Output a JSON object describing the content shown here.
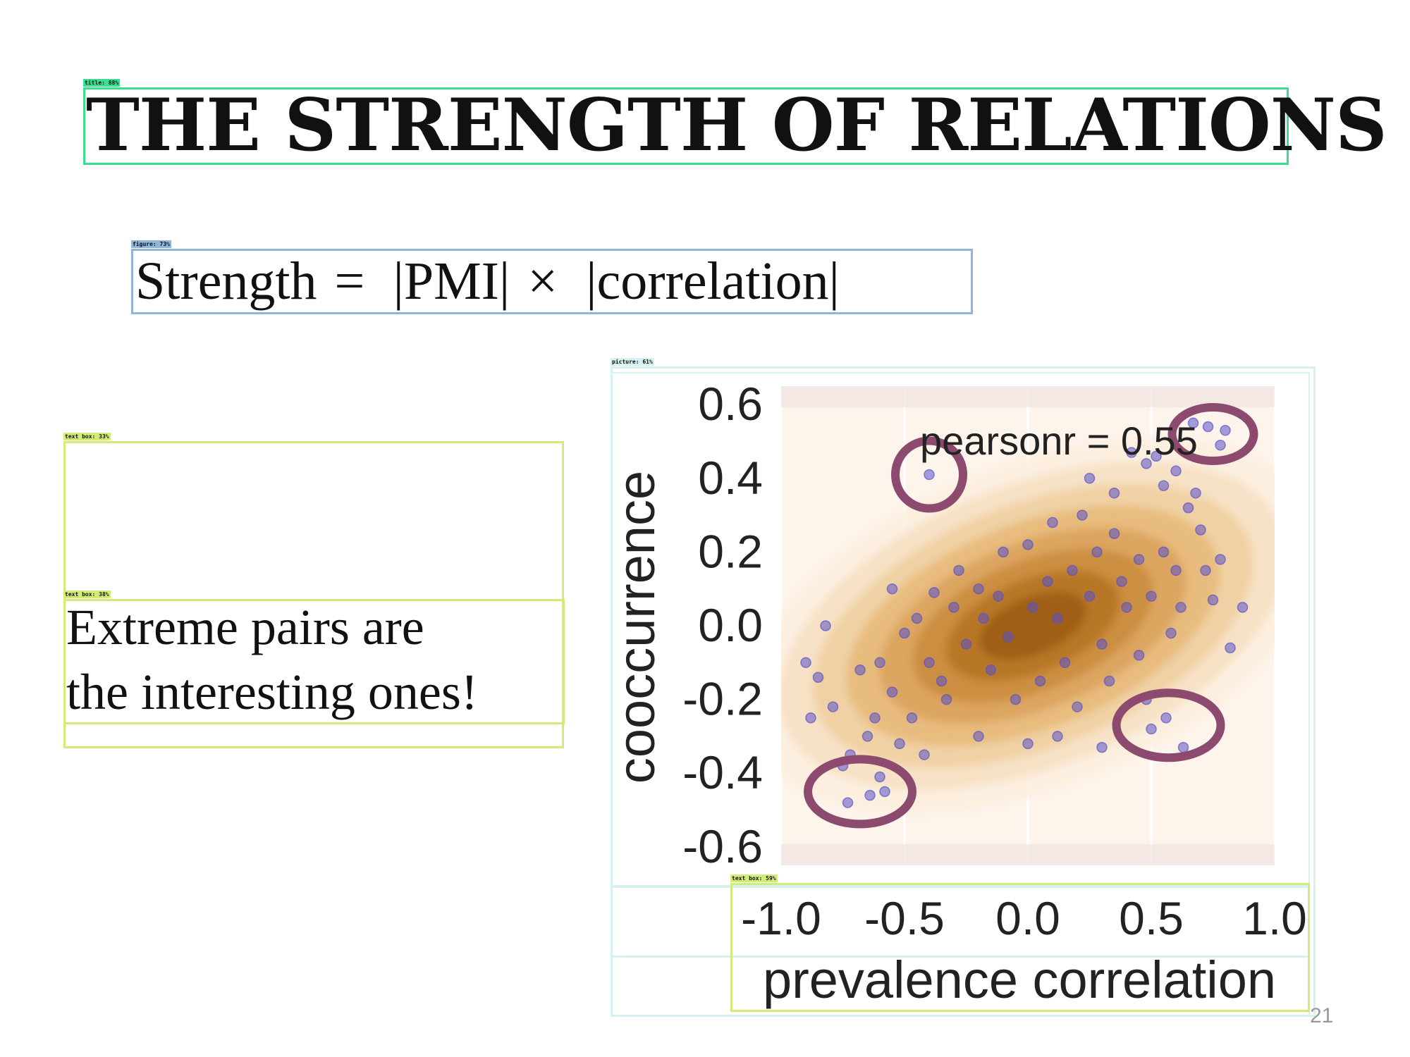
{
  "slide": {
    "title": "THE STRENGTH OF RELATIONS",
    "formula": "Strength =  |PMI| ×  |correlation|",
    "callout_line1": "Extreme pairs are",
    "callout_line2": "the interesting ones!",
    "page_number": "21"
  },
  "detections": {
    "title_label": "title: 88%",
    "figure_label": "figure: 73%",
    "picture_label": "picture: 61%",
    "textbox1_label": "text box: 33%",
    "textbox2_label": "text box: 38%",
    "textbox3_label": "text box: 59%"
  },
  "colors": {
    "title_box": "#36e08f",
    "figure_box": "#8fb6d8",
    "picture_box": "#d6f1f1",
    "textbox_box": "#d2ec78",
    "points": "#5a52c8",
    "circles": "#8c4a6e",
    "density_low": "#f9e6cf",
    "density_high": "#9a5a10",
    "plot_bg": "#fdf4ec"
  },
  "chart_data": {
    "type": "scatter",
    "xlabel": "prevalence correlation",
    "ylabel": "cooccurrence",
    "xlim": [
      -1.0,
      1.0
    ],
    "ylim": [
      -0.65,
      0.65
    ],
    "xticks": [
      "-1.0",
      "-0.5",
      "0.0",
      "0.5",
      "1.0"
    ],
    "yticks": [
      "0.6",
      "0.4",
      "0.2",
      "0.0",
      "-0.2",
      "-0.4",
      "-0.6"
    ],
    "annotation": "pearsonr = 0.55",
    "grid": true,
    "density_overlay": true,
    "highlighted_regions": [
      {
        "name": "upper-left outlier",
        "x": -0.4,
        "y": 0.41
      },
      {
        "name": "upper-right extreme",
        "x": 0.75,
        "y": 0.52
      },
      {
        "name": "lower-right outlier",
        "x": 0.57,
        "y": -0.27
      },
      {
        "name": "lower-left extreme",
        "x": -0.68,
        "y": -0.45
      }
    ],
    "series": [
      {
        "values": [
          [
            -0.73,
            -0.48
          ],
          [
            -0.64,
            -0.46
          ],
          [
            -0.58,
            -0.45
          ],
          [
            -0.75,
            -0.38
          ],
          [
            -0.6,
            -0.41
          ],
          [
            -0.4,
            0.41
          ],
          [
            0.67,
            0.55
          ],
          [
            0.73,
            0.54
          ],
          [
            0.8,
            0.53
          ],
          [
            0.78,
            0.49
          ],
          [
            0.5,
            -0.28
          ],
          [
            0.56,
            -0.25
          ],
          [
            0.63,
            -0.33
          ],
          [
            0.42,
            0.47
          ],
          [
            0.48,
            0.44
          ],
          [
            0.52,
            0.46
          ],
          [
            0.35,
            0.36
          ],
          [
            0.7,
            0.26
          ],
          [
            0.75,
            0.07
          ],
          [
            0.87,
            0.05
          ],
          [
            0.72,
            0.15
          ],
          [
            0.62,
            0.05
          ],
          [
            0.48,
            -0.2
          ],
          [
            0.3,
            -0.33
          ],
          [
            0.2,
            -0.22
          ],
          [
            -0.2,
            -0.3
          ],
          [
            -0.55,
            0.1
          ],
          [
            -0.38,
            0.09
          ],
          [
            -0.72,
            -0.35
          ],
          [
            -0.65,
            -0.3
          ],
          [
            -0.79,
            -0.22
          ],
          [
            -0.82,
            0.0
          ],
          [
            -0.55,
            -0.18
          ],
          [
            -0.47,
            -0.25
          ],
          [
            -0.35,
            -0.15
          ],
          [
            -0.3,
            0.05
          ],
          [
            -0.2,
            0.1
          ],
          [
            -0.1,
            0.2
          ],
          [
            0.0,
            0.22
          ],
          [
            0.1,
            0.28
          ],
          [
            0.22,
            0.3
          ],
          [
            0.35,
            0.25
          ],
          [
            0.45,
            0.18
          ],
          [
            0.55,
            0.2
          ],
          [
            0.6,
            0.15
          ],
          [
            0.4,
            0.05
          ],
          [
            0.3,
            -0.05
          ],
          [
            0.15,
            -0.1
          ],
          [
            0.05,
            -0.15
          ],
          [
            -0.05,
            -0.2
          ],
          [
            -0.15,
            -0.12
          ],
          [
            -0.25,
            -0.05
          ],
          [
            -0.4,
            -0.1
          ],
          [
            -0.5,
            -0.02
          ],
          [
            -0.6,
            -0.1
          ],
          [
            -0.68,
            -0.12
          ],
          [
            -0.45,
            0.02
          ],
          [
            -0.28,
            0.15
          ],
          [
            -0.12,
            0.08
          ],
          [
            0.02,
            0.05
          ],
          [
            0.12,
            0.02
          ],
          [
            0.25,
            0.08
          ],
          [
            0.38,
            0.12
          ],
          [
            0.5,
            0.08
          ],
          [
            0.08,
            0.12
          ],
          [
            -0.08,
            -0.03
          ],
          [
            0.18,
            0.15
          ],
          [
            -0.33,
            -0.2
          ],
          [
            0.28,
            0.2
          ],
          [
            -0.18,
            0.02
          ],
          [
            0.33,
            -0.15
          ],
          [
            0.45,
            -0.08
          ],
          [
            0.58,
            -0.02
          ],
          [
            -0.62,
            -0.25
          ],
          [
            -0.52,
            -0.32
          ],
          [
            -0.42,
            -0.35
          ],
          [
            0.0,
            -0.32
          ],
          [
            0.12,
            -0.3
          ],
          [
            0.65,
            0.32
          ],
          [
            0.55,
            0.38
          ],
          [
            0.25,
            0.4
          ],
          [
            0.6,
            0.42
          ],
          [
            0.68,
            0.36
          ],
          [
            -0.85,
            -0.14
          ],
          [
            -0.9,
            -0.1
          ],
          [
            -0.88,
            -0.25
          ],
          [
            0.82,
            -0.06
          ],
          [
            0.78,
            0.18
          ]
        ]
      }
    ]
  }
}
